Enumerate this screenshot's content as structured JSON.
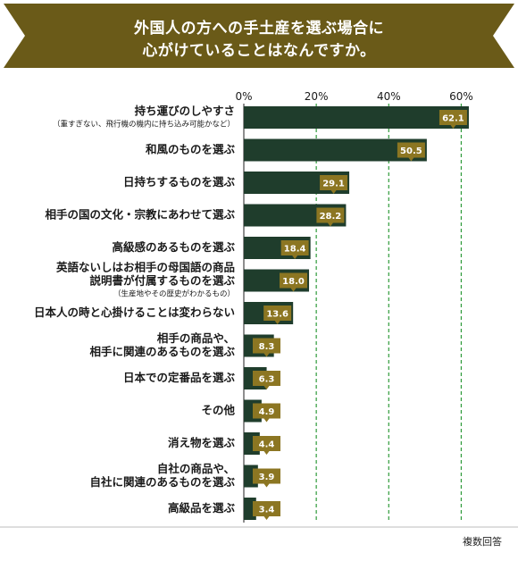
{
  "title": {
    "line1": "外国人の方への手土産を選ぶ場合に",
    "line2": "心がけていることはなんですか。"
  },
  "footnote": "複数回答",
  "colors": {
    "banner": "#6a5a18",
    "bar": "#1f3d2c",
    "label_box": "#8c7622",
    "gridline": "#2e9a3a",
    "text": "#1a1a1a"
  },
  "chart_data": {
    "type": "bar",
    "orientation": "horizontal",
    "xlim": [
      0,
      70
    ],
    "ticks": [
      0,
      20,
      40,
      60
    ],
    "tick_labels": [
      "0%",
      "20%",
      "40%",
      "60%"
    ],
    "grid": "dashed vertical at 20, 40, 60",
    "categories": [
      {
        "lines": [
          "持ち運びのしやすさ"
        ],
        "sub": "（重すぎない、飛行機の機内に持ち込み可能かなど）"
      },
      {
        "lines": [
          "和風のものを選ぶ"
        ],
        "sub": ""
      },
      {
        "lines": [
          "日持ちするものを選ぶ"
        ],
        "sub": ""
      },
      {
        "lines": [
          "相手の国の文化・宗教にあわせて選ぶ"
        ],
        "sub": ""
      },
      {
        "lines": [
          "高級感のあるものを選ぶ"
        ],
        "sub": ""
      },
      {
        "lines": [
          "英語ないしはお相手の母国語の商品",
          "説明書が付属するものを選ぶ"
        ],
        "sub": "（生産地やその歴史がわかるもの）"
      },
      {
        "lines": [
          "日本人の時と心掛けることは変わらない"
        ],
        "sub": ""
      },
      {
        "lines": [
          "相手の商品や、",
          "相手に関連のあるものを選ぶ"
        ],
        "sub": ""
      },
      {
        "lines": [
          "日本での定番品を選ぶ"
        ],
        "sub": ""
      },
      {
        "lines": [
          "その他"
        ],
        "sub": ""
      },
      {
        "lines": [
          "消え物を選ぶ"
        ],
        "sub": ""
      },
      {
        "lines": [
          "自社の商品や、",
          "自社に関連のあるものを選ぶ"
        ],
        "sub": ""
      },
      {
        "lines": [
          "高級品を選ぶ"
        ],
        "sub": ""
      }
    ],
    "values": [
      62.1,
      50.5,
      29.1,
      28.2,
      18.4,
      18.0,
      13.6,
      8.3,
      6.3,
      4.9,
      4.4,
      3.9,
      3.4
    ],
    "value_labels": [
      "62.1",
      "50.5",
      "29.1",
      "28.2",
      "18.4",
      "18.0",
      "13.6",
      "8.3",
      "6.3",
      "4.9",
      "4.4",
      "3.9",
      "3.4"
    ]
  }
}
